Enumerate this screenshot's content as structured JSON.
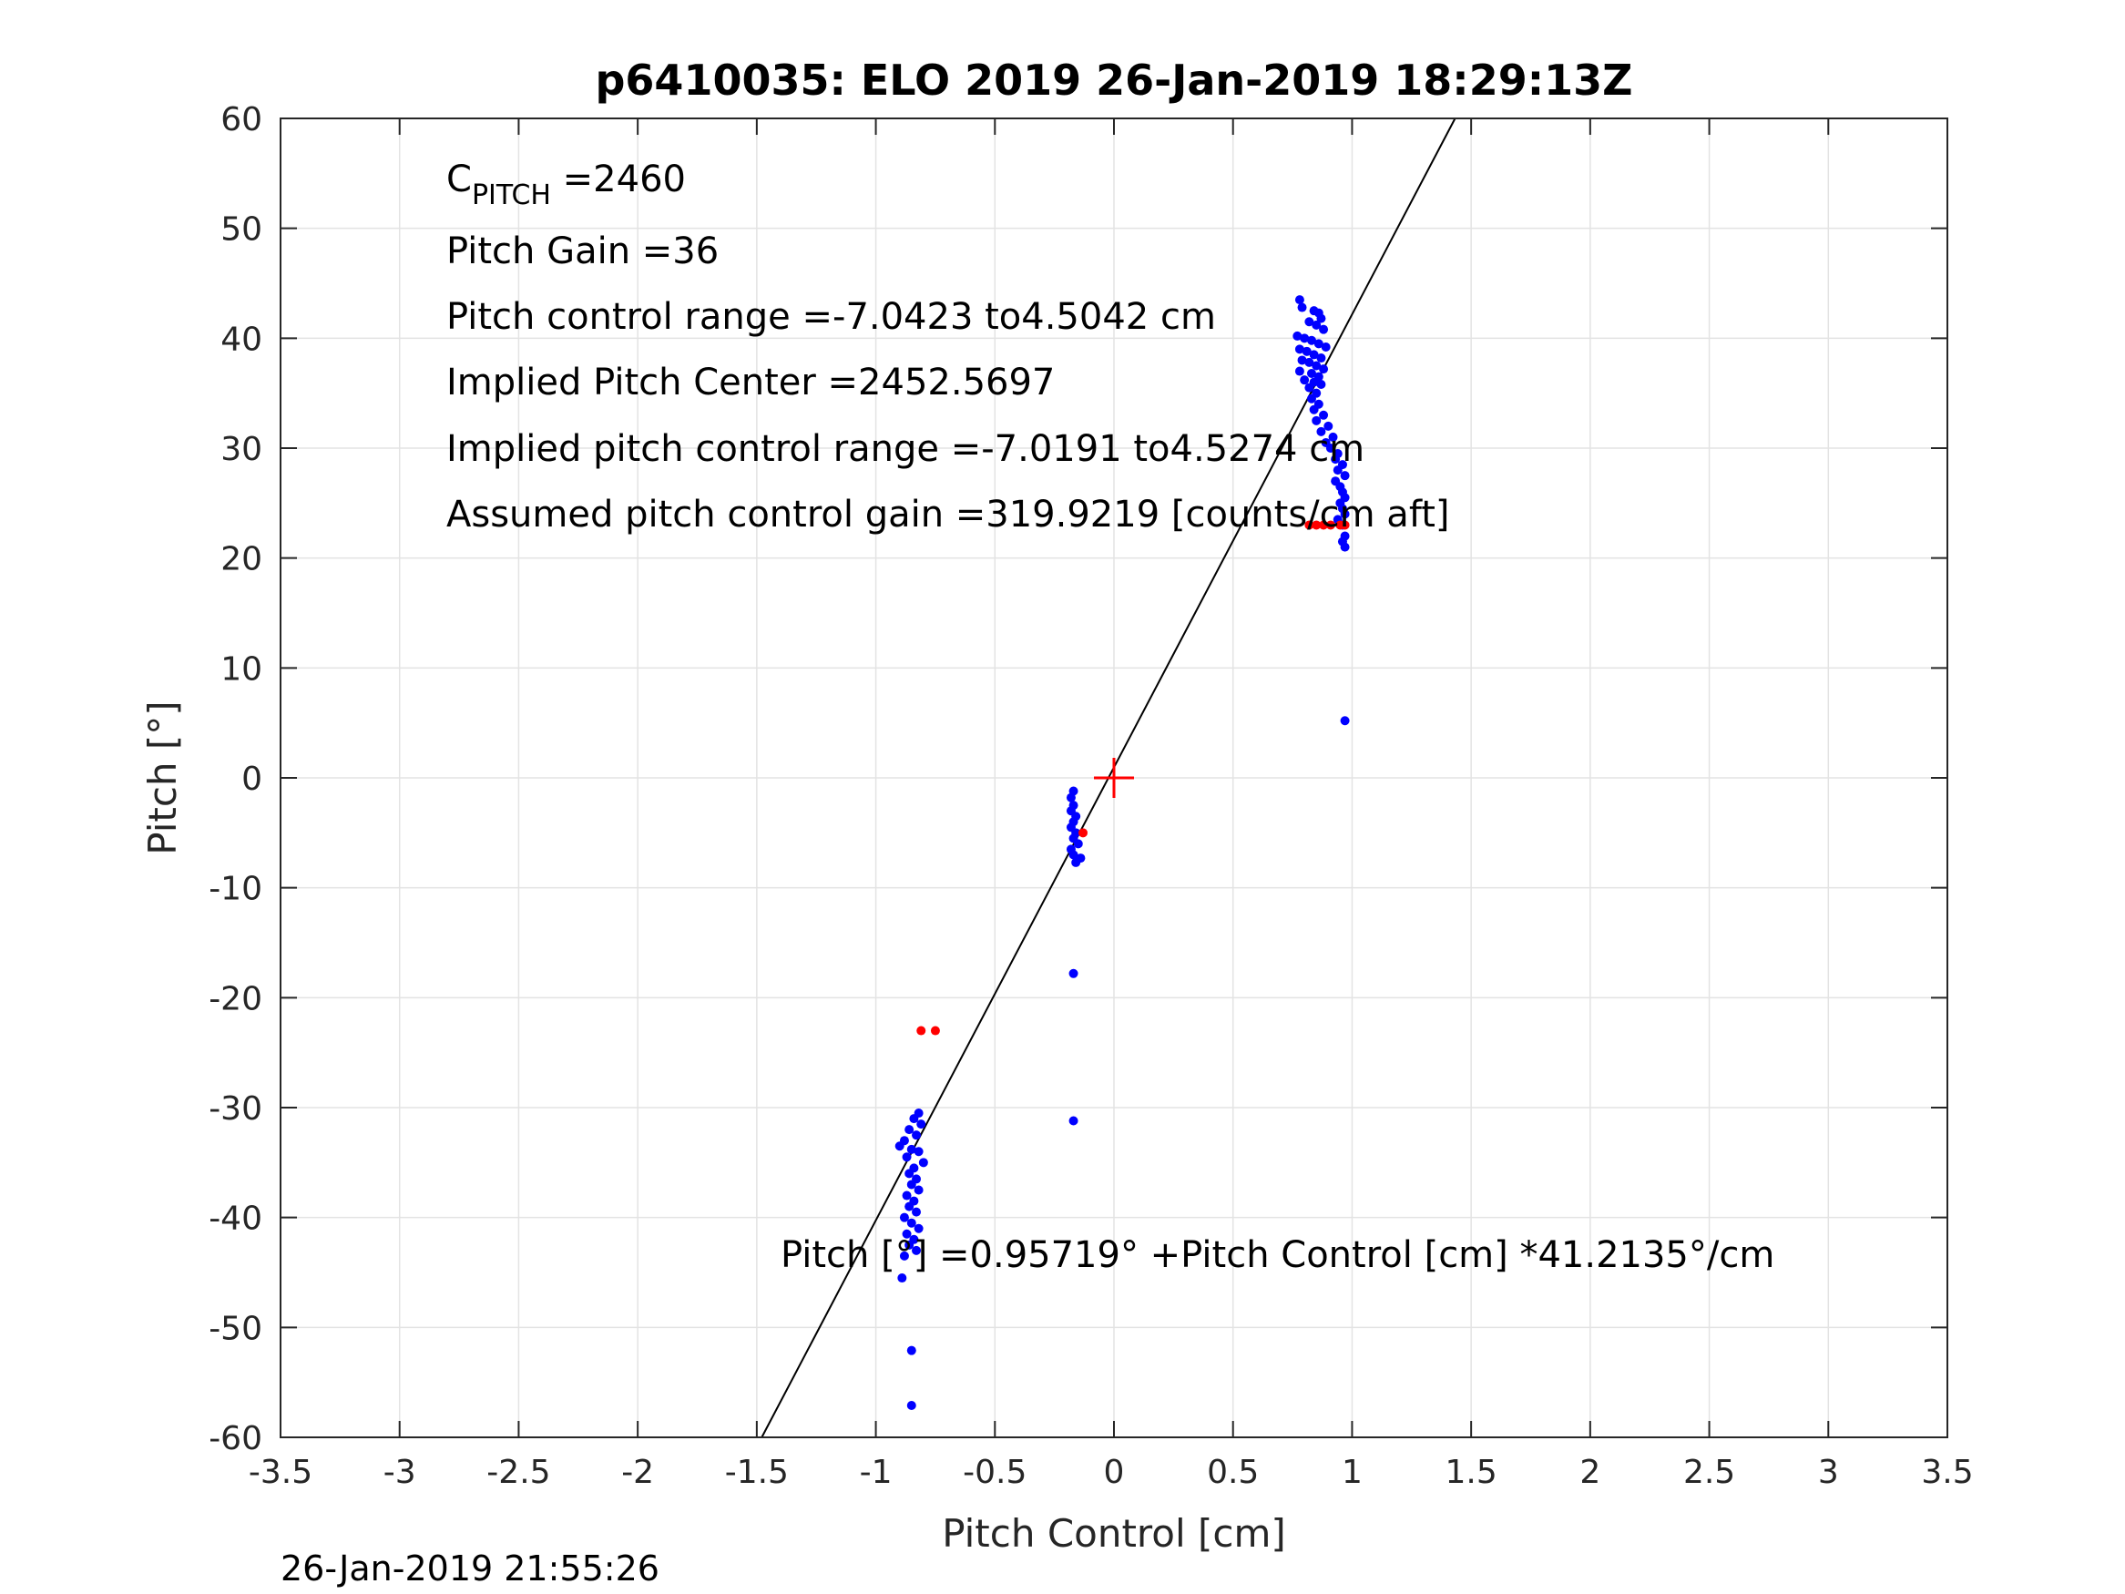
{
  "chart_data": {
    "type": "scatter",
    "title": "p6410035: ELO 2019 26-Jan-2019 18:29:13Z",
    "xlabel": "Pitch Control [cm]",
    "ylabel": "Pitch [°]",
    "xlim": [
      -3.5,
      3.5
    ],
    "ylim": [
      -60,
      60
    ],
    "xticks": [
      "-3.5",
      "-3",
      "-2.5",
      "-2",
      "-1.5",
      "-1",
      "-0.5",
      "0",
      "0.5",
      "1",
      "1.5",
      "2",
      "2.5",
      "3",
      "3.5"
    ],
    "yticks": [
      "-60",
      "-50",
      "-40",
      "-30",
      "-20",
      "-10",
      "0",
      "10",
      "20",
      "30",
      "40",
      "50",
      "60"
    ],
    "grid": true,
    "fit_line": {
      "intercept": 0.95719,
      "slope": 41.2135,
      "color": "#000000"
    },
    "center_marker": {
      "x": 0,
      "y": 0,
      "color": "#ff0000"
    },
    "series": [
      {
        "color": "#0000ff",
        "points": [
          [
            0.78,
            43.5
          ],
          [
            0.79,
            42.8
          ],
          [
            0.84,
            42.5
          ],
          [
            0.86,
            42.3
          ],
          [
            0.87,
            41.8
          ],
          [
            0.82,
            41.5
          ],
          [
            0.85,
            41.2
          ],
          [
            0.88,
            40.8
          ],
          [
            0.77,
            40.2
          ],
          [
            0.8,
            40.0
          ],
          [
            0.83,
            39.8
          ],
          [
            0.86,
            39.5
          ],
          [
            0.89,
            39.2
          ],
          [
            0.78,
            39.0
          ],
          [
            0.81,
            38.8
          ],
          [
            0.84,
            38.5
          ],
          [
            0.87,
            38.2
          ],
          [
            0.79,
            38.0
          ],
          [
            0.82,
            37.8
          ],
          [
            0.85,
            37.5
          ],
          [
            0.88,
            37.2
          ],
          [
            0.78,
            37.0
          ],
          [
            0.83,
            36.8
          ],
          [
            0.86,
            36.5
          ],
          [
            0.8,
            36.2
          ],
          [
            0.84,
            36.0
          ],
          [
            0.87,
            35.8
          ],
          [
            0.82,
            35.5
          ],
          [
            0.85,
            35.0
          ],
          [
            0.83,
            34.5
          ],
          [
            0.86,
            34.0
          ],
          [
            0.84,
            33.5
          ],
          [
            0.88,
            33.0
          ],
          [
            0.85,
            32.5
          ],
          [
            0.9,
            32.0
          ],
          [
            0.87,
            31.5
          ],
          [
            0.92,
            31.0
          ],
          [
            0.89,
            30.5
          ],
          [
            0.91,
            30.0
          ],
          [
            0.94,
            29.5
          ],
          [
            0.93,
            29.0
          ],
          [
            0.96,
            28.5
          ],
          [
            0.94,
            28.0
          ],
          [
            0.97,
            27.5
          ],
          [
            0.93,
            27.0
          ],
          [
            0.95,
            26.5
          ],
          [
            0.96,
            26.0
          ],
          [
            0.97,
            25.5
          ],
          [
            0.95,
            25.0
          ],
          [
            0.96,
            24.5
          ],
          [
            0.97,
            24.0
          ],
          [
            0.94,
            23.5
          ],
          [
            0.96,
            23.0
          ],
          [
            0.97,
            22.0
          ],
          [
            0.96,
            21.5
          ],
          [
            0.97,
            21.0
          ],
          [
            0.97,
            5.2
          ],
          [
            -0.17,
            -1.2
          ],
          [
            -0.18,
            -1.8
          ],
          [
            -0.17,
            -2.5
          ],
          [
            -0.18,
            -3.0
          ],
          [
            -0.16,
            -3.5
          ],
          [
            -0.17,
            -4.0
          ],
          [
            -0.18,
            -4.5
          ],
          [
            -0.16,
            -5.0
          ],
          [
            -0.17,
            -5.5
          ],
          [
            -0.15,
            -6.0
          ],
          [
            -0.18,
            -6.5
          ],
          [
            -0.17,
            -7.0
          ],
          [
            -0.14,
            -7.3
          ],
          [
            -0.16,
            -7.7
          ],
          [
            -0.17,
            -17.8
          ],
          [
            -0.17,
            -31.2
          ],
          [
            -0.82,
            -30.5
          ],
          [
            -0.84,
            -31.0
          ],
          [
            -0.81,
            -31.5
          ],
          [
            -0.86,
            -32.0
          ],
          [
            -0.83,
            -32.5
          ],
          [
            -0.88,
            -33.0
          ],
          [
            -0.9,
            -33.5
          ],
          [
            -0.85,
            -33.8
          ],
          [
            -0.82,
            -34.0
          ],
          [
            -0.87,
            -34.5
          ],
          [
            -0.8,
            -35.0
          ],
          [
            -0.84,
            -35.5
          ],
          [
            -0.86,
            -36.0
          ],
          [
            -0.83,
            -36.5
          ],
          [
            -0.85,
            -37.0
          ],
          [
            -0.82,
            -37.5
          ],
          [
            -0.87,
            -38.0
          ],
          [
            -0.84,
            -38.5
          ],
          [
            -0.86,
            -39.0
          ],
          [
            -0.83,
            -39.5
          ],
          [
            -0.88,
            -40.0
          ],
          [
            -0.85,
            -40.5
          ],
          [
            -0.82,
            -41.0
          ],
          [
            -0.87,
            -41.5
          ],
          [
            -0.84,
            -42.0
          ],
          [
            -0.86,
            -42.5
          ],
          [
            -0.83,
            -43.0
          ],
          [
            -0.88,
            -43.5
          ],
          [
            -0.89,
            -45.5
          ],
          [
            -0.85,
            -52.1
          ],
          [
            -0.85,
            -57.1
          ]
        ]
      },
      {
        "color": "#ff0000",
        "points": [
          [
            0.82,
            23.0
          ],
          [
            0.85,
            23.0
          ],
          [
            0.88,
            23.0
          ],
          [
            0.91,
            23.0
          ],
          [
            0.95,
            23.0
          ],
          [
            0.97,
            23.0
          ],
          [
            -0.13,
            -5.0
          ],
          [
            -0.81,
            -23.0
          ],
          [
            -0.75,
            -23.0
          ]
        ]
      }
    ],
    "annotations": {
      "c_pitch_base": "C",
      "c_pitch_sub": "PITCH",
      "c_pitch_value": " =2460",
      "pitch_gain": "Pitch Gain =36",
      "control_range": "Pitch control range =-7.0423 to4.5042 cm",
      "implied_center": "Implied Pitch Center =2452.5697",
      "implied_range": "Implied pitch control range =-7.0191 to4.5274 cm",
      "assumed_gain": "Assumed pitch control gain =319.9219 [counts/cm aft]",
      "fit_equation": "Pitch [°] =0.95719° +Pitch Control [cm] *41.2135°/cm"
    },
    "timestamp": "26-Jan-2019 21:55:26"
  }
}
